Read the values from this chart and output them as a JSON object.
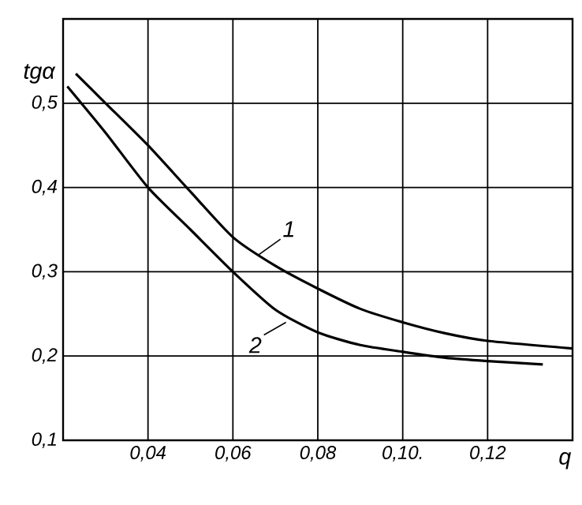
{
  "chart_data": {
    "type": "line",
    "xlabel": "q",
    "ylabel": "tgα",
    "xlim": [
      0.02,
      0.14
    ],
    "ylim": [
      0.1,
      0.6
    ],
    "xticks": [
      {
        "value": 0.04,
        "label": "0,04"
      },
      {
        "value": 0.06,
        "label": "0,06"
      },
      {
        "value": 0.08,
        "label": "0,08"
      },
      {
        "value": 0.1,
        "label": "0,10."
      },
      {
        "value": 0.12,
        "label": "0,12"
      }
    ],
    "yticks": [
      {
        "value": 0.1,
        "label": "0,1"
      },
      {
        "value": 0.2,
        "label": "0,2"
      },
      {
        "value": 0.3,
        "label": "0,3"
      },
      {
        "value": 0.4,
        "label": "0,4"
      },
      {
        "value": 0.5,
        "label": "0,5"
      }
    ],
    "grid": true,
    "marker": "none",
    "line_style": "solid",
    "series": [
      {
        "color": "#000000",
        "x": [
          0.023,
          0.03,
          0.04,
          0.05,
          0.06,
          0.07,
          0.08,
          0.09,
          0.1,
          0.11,
          0.12,
          0.14
        ],
        "values": [
          0.535,
          0.5,
          0.45,
          0.395,
          0.341,
          0.307,
          0.28,
          0.256,
          0.24,
          0.227,
          0.218,
          0.209
        ]
      },
      {
        "color": "#000000",
        "x": [
          0.021,
          0.03,
          0.04,
          0.05,
          0.06,
          0.07,
          0.08,
          0.09,
          0.1,
          0.11,
          0.12,
          0.133
        ],
        "values": [
          0.52,
          0.465,
          0.4,
          0.35,
          0.3,
          0.255,
          0.228,
          0.213,
          0.205,
          0.198,
          0.194,
          0.19
        ]
      }
    ],
    "annotations": [
      {
        "text": "1",
        "x": 0.066,
        "y": 0.32
      },
      {
        "text": "2",
        "x": 0.0725,
        "y": 0.24
      }
    ]
  }
}
